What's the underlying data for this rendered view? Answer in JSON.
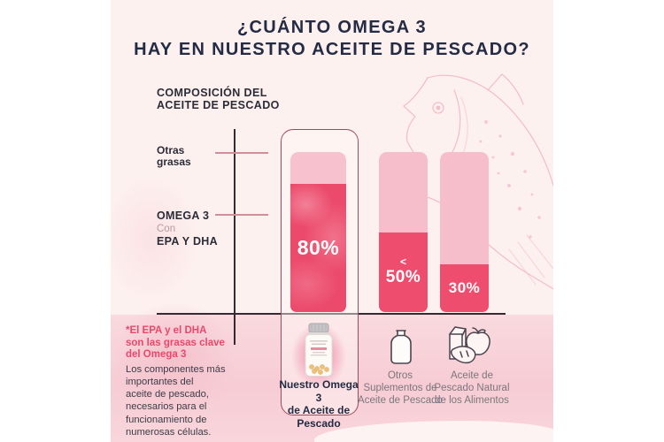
{
  "colors": {
    "page_background": "#ffffff",
    "infographic_background": "#fdf1ef",
    "title_navy": "#242b45",
    "bar_dark_pink": "#ee4d6e",
    "bar_light_pink": "#f6bdca",
    "highlight_box_border": "#9c4c59",
    "axis_dark": "#352a31",
    "tick_muted_pink": "#cf8f98",
    "footnote_pink": "#e8486b",
    "secondary_label_gray": "#7b767d",
    "watercolor_wash": "#f7ccd4"
  },
  "header": {
    "title_line1": "¿CUÁNTO OMEGA 3",
    "title_line2": "HAY EN NUESTRO ACEITE DE PESCADO?"
  },
  "chart_data": {
    "type": "bar",
    "title": "COMPOSICIÓN DEL ACEITE DE PESCADO",
    "title_display": "COMPOSICIÓN DEL\nACEITE DE PESCADO",
    "y_axis": {
      "label_top": "Otras\ngrasas",
      "label_bottom_bold1": "OMEGA 3",
      "label_bottom_mid": "Con",
      "label_bottom_bold2": "EPA Y DHA"
    },
    "categories": [
      "Nuestro Omega 3 de Aceite de Pescado",
      "Otros Suplementos de Aceite de Pescado",
      "Aceite de Pescado Natural de los Alimentos"
    ],
    "series": [
      {
        "name": "OMEGA 3 con EPA y DHA",
        "values": [
          80,
          50,
          30
        ]
      },
      {
        "name": "Otras grasas",
        "values": [
          20,
          50,
          70
        ]
      }
    ],
    "bar_labels": [
      {
        "small": "",
        "main": "80%"
      },
      {
        "small": "<",
        "main": "50%"
      },
      {
        "small": "",
        "main": "30%"
      }
    ],
    "ylim": [
      0,
      100
    ],
    "highlighted_category_index": 0,
    "grid": false,
    "legend": false
  },
  "columns": [
    {
      "icon": "product-bottle",
      "label": "Nuestro Omega 3\nde Aceite de\nPescado"
    },
    {
      "icon": "supplement-bottle-icon",
      "label": "Otros\nSuplementos de\nAceite de Pescado"
    },
    {
      "icon": "natural-foods-icon",
      "label": "Aceite de\nPescado Natural\nde los Alimentos"
    }
  ],
  "footnote": {
    "highlight": "*El EPA y el DHA\nson las grasas clave\ndel Omega 3",
    "body": "Los componentes más\nimportantes del\naceite de pescado,\nnecesarios para el\nfuncionamiento de\nnumerosas células."
  }
}
